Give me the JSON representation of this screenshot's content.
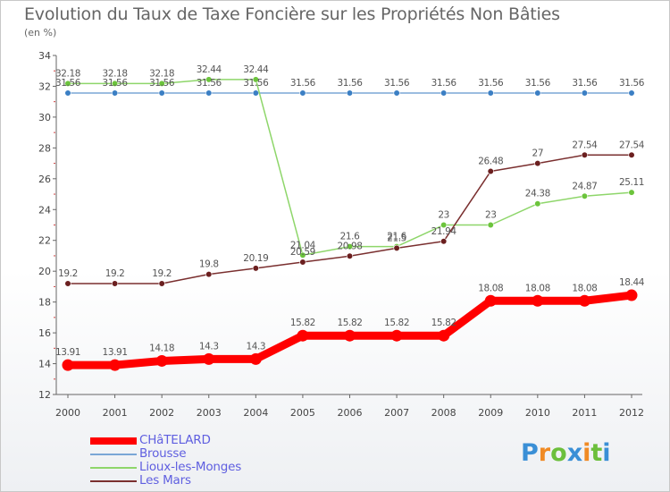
{
  "title": "Evolution du Taux de Taxe Foncière sur les Propriétés Non Bâties",
  "subtitle": "(en %)",
  "logo": {
    "text": "Proxiti",
    "letters": [
      {
        "ch": "P",
        "color": "#3a8fd6"
      },
      {
        "ch": "r",
        "color": "#f08a24"
      },
      {
        "ch": "o",
        "color": "#6cbf3c"
      },
      {
        "ch": "x",
        "color": "#3a8fd6"
      },
      {
        "ch": "i",
        "color": "#f08a24"
      },
      {
        "ch": "t",
        "color": "#6cbf3c"
      },
      {
        "ch": "i",
        "color": "#3a8fd6"
      }
    ]
  },
  "chart_data": {
    "type": "line",
    "title": "Evolution du Taux de Taxe Foncière sur les Propriétés Non Bâties",
    "ylabel": "(en %)",
    "xlabel": "",
    "x": [
      "2000",
      "2001",
      "2002",
      "2003",
      "2004",
      "2005",
      "2006",
      "2007",
      "2008",
      "2009",
      "2010",
      "2011",
      "2012"
    ],
    "ylim": [
      12,
      34
    ],
    "yticks": [
      12,
      14,
      16,
      18,
      20,
      22,
      24,
      26,
      28,
      30,
      32,
      34
    ],
    "grid": false,
    "legend": "bottom-left",
    "series": [
      {
        "name": "CHâTELARD",
        "color": "#ff0000",
        "marker_color": "#ff0000",
        "values": [
          13.91,
          13.91,
          14.18,
          14.3,
          14.3,
          15.82,
          15.82,
          15.82,
          15.82,
          18.08,
          18.08,
          18.08,
          18.44
        ],
        "labels": [
          "13.91",
          "13.91",
          "14.18",
          "14.3",
          "14.3",
          "15.82",
          "15.82",
          "15.82",
          "15.82",
          "18.08",
          "18.08",
          "18.08",
          "18.44"
        ]
      },
      {
        "name": "Brousse",
        "color": "#7aa7d6",
        "marker_color": "#3b7fc4",
        "values": [
          31.56,
          31.56,
          31.56,
          31.56,
          31.56,
          31.56,
          31.56,
          31.56,
          31.56,
          31.56,
          31.56,
          31.56,
          31.56
        ],
        "labels": [
          "31.56",
          "31.56",
          "31.56",
          "31.56",
          "31.56",
          "31.56",
          "31.56",
          "31.56",
          "31.56",
          "31.56",
          "31.56",
          "31.56",
          "31.56"
        ]
      },
      {
        "name": "Lioux-les-Monges",
        "color": "#8ed66a",
        "marker_color": "#6cc43c",
        "values": [
          32.18,
          32.18,
          32.18,
          32.44,
          32.44,
          21.04,
          21.6,
          21.6,
          23,
          23,
          24.38,
          24.87,
          25.11
        ],
        "labels": [
          "32.18",
          "32.18",
          "32.18",
          "32.44",
          "32.44",
          "21.04",
          "21.6",
          "21.6",
          "23",
          "23",
          "24.38",
          "24.87",
          "25.11"
        ]
      },
      {
        "name": "Les Mars",
        "color": "#7a2f2f",
        "marker_color": "#6b1f1f",
        "values": [
          19.2,
          19.2,
          19.2,
          19.8,
          20.19,
          20.59,
          20.98,
          21.5,
          21.94,
          26.48,
          27,
          27.54,
          27.54
        ],
        "labels": [
          "19.2",
          "19.2",
          "19.2",
          "19.8",
          "20.19",
          "20.59",
          "20.98",
          "21.5",
          "21.94",
          "26.48",
          "27",
          "27.54",
          "27.54"
        ]
      }
    ]
  }
}
